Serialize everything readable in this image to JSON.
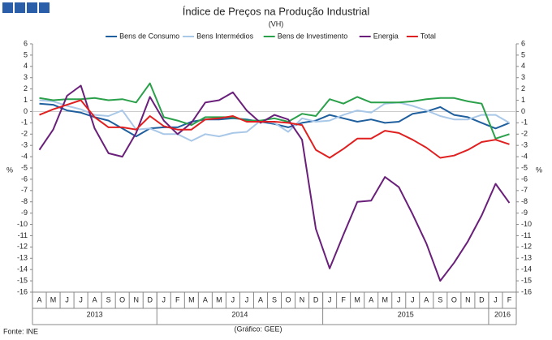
{
  "chart_data": {
    "type": "line",
    "title": "Índice de Preços na Produção Industrial",
    "subtitle": "(VH)",
    "y_label": "%",
    "y2_label": "%",
    "source": "Fonte: INE",
    "credit": "(Gráfico: GEE)",
    "categories": [
      "A",
      "M",
      "J",
      "J",
      "A",
      "S",
      "O",
      "N",
      "D",
      "J",
      "F",
      "M",
      "A",
      "M",
      "J",
      "J",
      "A",
      "S",
      "O",
      "N",
      "D",
      "J",
      "F",
      "M",
      "A",
      "M",
      "J",
      "J",
      "A",
      "S",
      "O",
      "N",
      "D",
      "J",
      "F"
    ],
    "year_groups": [
      {
        "label": "2013",
        "months": 9
      },
      {
        "label": "2014",
        "months": 12
      },
      {
        "label": "2015",
        "months": 12
      },
      {
        "label": "2016",
        "months": 2
      }
    ],
    "ylim": [
      -16,
      6
    ],
    "yticks": [
      -16,
      -15,
      -14,
      -13,
      -12,
      -11,
      -10,
      -9,
      -8,
      -7,
      -6,
      -5,
      -4,
      -3,
      -2,
      -1,
      0,
      1,
      2,
      3,
      4,
      5,
      6
    ],
    "grid": false,
    "legend": "top",
    "series": [
      {
        "name": "Bens de Consumo",
        "color": "#1f5f9e",
        "values": [
          0.7,
          0.6,
          0.1,
          -0.1,
          -0.5,
          -0.8,
          -1.5,
          -2.2,
          -1.5,
          -1.4,
          -1.4,
          -0.9,
          -0.7,
          -0.7,
          -0.6,
          -0.7,
          -0.9,
          -1.1,
          -1.4,
          -1.0,
          -0.8,
          -0.3,
          -0.6,
          -0.9,
          -0.7,
          -1.0,
          -0.9,
          -0.2,
          0.0,
          0.4,
          -0.3,
          -0.5,
          -1.0,
          -1.5,
          -1.0
        ]
      },
      {
        "name": "Bens Intermédios",
        "color": "#a9c8e8",
        "values": [
          1.0,
          0.9,
          0.5,
          0.2,
          -0.3,
          -0.4,
          0.1,
          -1.6,
          -1.5,
          -2.0,
          -2.0,
          -2.6,
          -2.0,
          -2.2,
          -1.9,
          -1.8,
          -0.8,
          -1.0,
          -1.8,
          -0.6,
          -0.9,
          -0.8,
          -0.3,
          0.1,
          -0.1,
          0.7,
          0.8,
          0.5,
          0.1,
          -0.4,
          -0.7,
          -0.7,
          -0.3,
          -0.3,
          -1.0
        ]
      },
      {
        "name": "Bens de Investimento",
        "color": "#2aa04a",
        "values": [
          1.2,
          1.0,
          1.1,
          1.1,
          1.2,
          1.0,
          1.1,
          0.8,
          2.5,
          -0.5,
          -0.8,
          -1.2,
          -0.5,
          -0.5,
          -0.5,
          -0.8,
          -0.8,
          -0.6,
          -0.9,
          -0.2,
          -0.4,
          1.1,
          0.7,
          1.3,
          0.8,
          0.8,
          0.8,
          0.9,
          1.1,
          1.2,
          1.2,
          0.9,
          0.7,
          -2.4,
          -2.0
        ]
      },
      {
        "name": "Energia",
        "color": "#6a1f7a",
        "values": [
          -3.4,
          -1.6,
          1.4,
          2.3,
          -1.5,
          -3.7,
          -4.0,
          -1.9,
          1.3,
          -0.8,
          -2.0,
          -1.0,
          0.8,
          1.0,
          1.7,
          0.1,
          -1.0,
          -0.3,
          -0.7,
          -2.5,
          -10.4,
          -13.9,
          -10.9,
          -8.0,
          -7.9,
          -5.8,
          -6.7,
          -9.1,
          -11.7,
          -15.0,
          -13.4,
          -11.5,
          -9.2,
          -6.4,
          -8.1
        ]
      },
      {
        "name": "Total",
        "color": "#e02020",
        "values": [
          -0.3,
          0.2,
          0.6,
          1.0,
          -0.5,
          -1.4,
          -1.4,
          -1.6,
          -0.4,
          -1.3,
          -1.6,
          -1.6,
          -0.7,
          -0.6,
          -0.4,
          -0.9,
          -0.9,
          -0.9,
          -1.0,
          -1.2,
          -3.4,
          -4.1,
          -3.3,
          -2.4,
          -2.4,
          -1.7,
          -1.9,
          -2.5,
          -3.2,
          -4.1,
          -3.9,
          -3.4,
          -2.7,
          -2.5,
          -2.9
        ]
      }
    ]
  }
}
